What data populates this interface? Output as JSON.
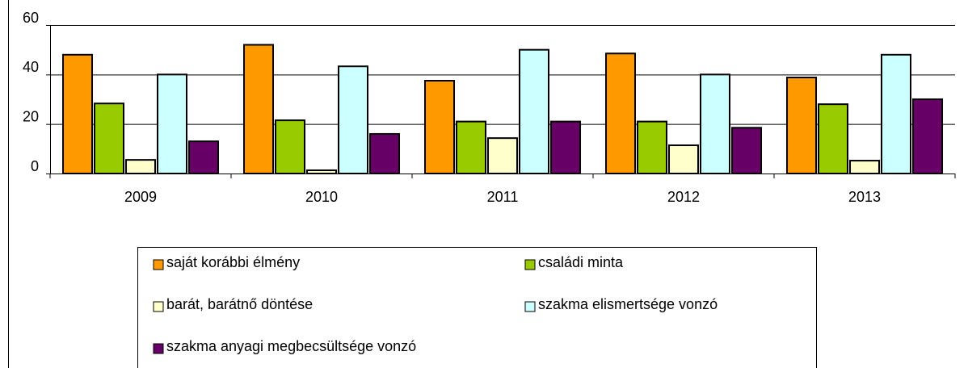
{
  "chart_data": {
    "type": "bar",
    "categories": [
      "2009",
      "2010",
      "2011",
      "2012",
      "2013"
    ],
    "series": [
      {
        "name": "saját korábbi élmény",
        "color": "#ff9900",
        "values": [
          48,
          52,
          37.5,
          48.5,
          38.8
        ]
      },
      {
        "name": "családi minta",
        "color": "#99cc00",
        "values": [
          28.3,
          21.5,
          21,
          21,
          28
        ]
      },
      {
        "name": "barát, barátnő döntése",
        "color": "#ffffcc",
        "values": [
          5.5,
          1.3,
          14.3,
          11.4,
          5.2
        ]
      },
      {
        "name": "szakma elismertsége vonzó",
        "color": "#ccffff",
        "values": [
          40,
          43.3,
          50,
          40,
          48
        ]
      },
      {
        "name": "szakma anyagi megbecsültsége vonzó",
        "color": "#660066",
        "values": [
          13,
          16,
          21,
          18.5,
          30
        ]
      }
    ],
    "ylim": [
      0,
      60
    ],
    "yticks": [
      0,
      20,
      40,
      60
    ],
    "grid": true,
    "legend": "bottom"
  }
}
